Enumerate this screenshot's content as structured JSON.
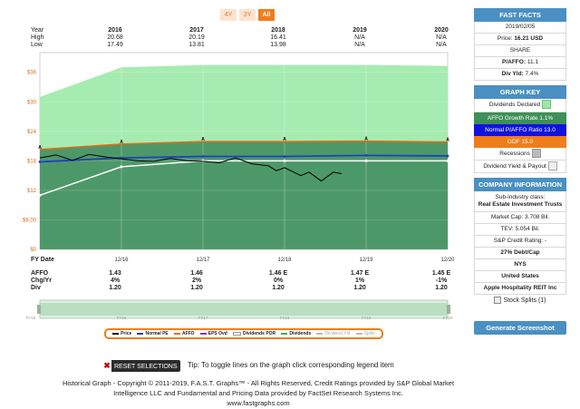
{
  "range_buttons": [
    {
      "label": "4Y",
      "active": false
    },
    {
      "label": "3Y",
      "active": false
    },
    {
      "label": "All",
      "active": true
    }
  ],
  "header_table": {
    "row_labels": [
      "Year",
      "High",
      "Low"
    ],
    "years": [
      "2016",
      "2017",
      "2018",
      "2019",
      "2020"
    ],
    "high": [
      "20.68",
      "20.19",
      "16.41",
      "N/A",
      "N/A"
    ],
    "low": [
      "17.49",
      "13.81",
      "13.98",
      "N/A",
      "N/A"
    ]
  },
  "chart_data": {
    "type": "area",
    "title": "",
    "y_ticks": [
      "$36",
      "$30",
      "$24",
      "$18",
      "$12",
      "$6.00",
      "$0"
    ],
    "ylim": [
      0,
      40
    ],
    "x_labels": [
      "12/16",
      "12/17",
      "12/18",
      "12/19",
      "12/20"
    ],
    "timeline_labels": [
      "FY15",
      "FY16",
      "FY17",
      "FY18",
      "FY19",
      "FY20"
    ],
    "series": [
      {
        "name": "Price",
        "color": "#000000",
        "points": [
          [
            2015.0,
            18.6
          ],
          [
            2015.2,
            19.2
          ],
          [
            2015.4,
            18.1
          ],
          [
            2015.6,
            19.3
          ],
          [
            2015.8,
            18.8
          ],
          [
            2016.0,
            18.4
          ],
          [
            2016.2,
            18.0
          ],
          [
            2016.4,
            17.9
          ],
          [
            2016.6,
            18.5
          ],
          [
            2016.8,
            18.0
          ],
          [
            2017.0,
            17.9
          ],
          [
            2017.2,
            17.6
          ],
          [
            2017.4,
            18.6
          ],
          [
            2017.6,
            17.4
          ],
          [
            2017.8,
            17.0
          ],
          [
            2017.9,
            16.0
          ],
          [
            2018.0,
            16.6
          ],
          [
            2018.2,
            15.0
          ],
          [
            2018.3,
            15.7
          ],
          [
            2018.45,
            13.9
          ],
          [
            2018.6,
            15.7
          ],
          [
            2018.7,
            15.4
          ]
        ]
      },
      {
        "name": "Normal P/AFFO Ratio 13.0",
        "color": "#1f3fbf",
        "points": [
          [
            2015.0,
            17.8
          ],
          [
            2016.0,
            18.6
          ],
          [
            2017.0,
            18.9
          ],
          [
            2018.0,
            18.9
          ],
          [
            2019.0,
            19.1
          ],
          [
            2020.0,
            19.0
          ]
        ]
      },
      {
        "name": "AFFO",
        "color": "#e06a1b",
        "points": [
          [
            2015.0,
            20.3
          ],
          [
            2016.0,
            21.4
          ],
          [
            2017.0,
            21.9
          ],
          [
            2018.0,
            21.9
          ],
          [
            2019.0,
            22.0
          ],
          [
            2020.0,
            21.8
          ]
        ]
      },
      {
        "name": "Dividends POR",
        "color": "#ffffff",
        "points": [
          [
            2015.0,
            11.0
          ],
          [
            2016.0,
            16.8
          ],
          [
            2017.0,
            18.0
          ],
          [
            2018.0,
            18.0
          ],
          [
            2019.0,
            18.0
          ],
          [
            2020.0,
            18.0
          ]
        ]
      },
      {
        "name": "Dividends Declared",
        "color": "#8ee89a",
        "points": [
          [
            2015.0,
            31.0
          ],
          [
            2016.0,
            37.0
          ],
          [
            2017.0,
            37.5
          ],
          [
            2018.0,
            37.5
          ],
          [
            2019.0,
            37.5
          ],
          [
            2020.0,
            37.3
          ]
        ]
      }
    ]
  },
  "bottom_table": {
    "fy_label": "FY Date",
    "rows": [
      {
        "label": "AFFO",
        "values": [
          "1.43",
          "1.46",
          "1.46 E",
          "1.47 E",
          "1.45 E"
        ]
      },
      {
        "label": "Chg/Yr",
        "values": [
          "4%",
          "2%",
          "0%",
          "1%",
          "-1%"
        ]
      },
      {
        "label": "Div",
        "values": [
          "1.20",
          "1.20",
          "1.20",
          "1.20",
          "1.20"
        ]
      }
    ]
  },
  "legend": [
    {
      "label": "Price",
      "color": "#000000",
      "dim": false
    },
    {
      "label": "Normal PE",
      "color": "#1f3fbf",
      "dim": false
    },
    {
      "label": "AFFO",
      "color": "#e06a1b",
      "dim": false
    },
    {
      "label": "EPS Ovd",
      "color": "#8a2be2",
      "dim": false
    },
    {
      "label": "Dividends POR",
      "color": "#ffffff",
      "dim": false
    },
    {
      "label": "Dividends",
      "color": "#3cb14a",
      "dim": false
    },
    {
      "label": "Dividend Yld",
      "color": "#bbbbbb",
      "dim": true
    },
    {
      "label": "Splits",
      "color": "#bbbbbb",
      "dim": true
    }
  ],
  "reset_label": "RESET SELECTIONS",
  "tip_text": "Tip: To toggle lines on the graph click corresponding legend item",
  "footer_lines": [
    "Historical Graph - Copyright © 2011-2019, F.A.S.T. Graphs™ - All Rights Reserved, Credit Ratings provided by S&P Global Market",
    "Intelligence LLC and Fundamental and Pricing Data provided by FactSet Research Systems Inc.",
    "www.fastgraphs.com"
  ],
  "sidebar": {
    "fast_facts_title": "FAST FACTS",
    "date": "2019/02/05",
    "price_label": "Price:",
    "price_value": "16.21 USD",
    "share": "SHARE",
    "pafo_label": "P/AFFO:",
    "pafo_value": "11.1",
    "div_yld_label": "Div Yld:",
    "div_yld_value": "7.4%",
    "graph_key_title": "GRAPH KEY",
    "key_dividends_declared": "Dividends Declared",
    "key_affo_growth": "AFFO Growth Rate 1.1%",
    "key_normal_pafo": "Normal P/AFFO Ratio 13.0",
    "key_gdf": "GDF 15.0",
    "key_recessions": "Recessions",
    "key_div_yield_payout": "Dividend Yield & Payout",
    "company_title": "COMPANY INFORMATION",
    "sub_industry_label": "Sub-industry class:",
    "sub_industry_value": "Real Estate Investment Trusts",
    "market_cap": "Market Cap: 3.708 Bil.",
    "tev": "TEV: 5.054 Bil.",
    "sp_rating": "S&P Credit Rating: -",
    "debt_cap": "27% Debt/Cap",
    "exchange": "NYS",
    "country": "United States",
    "company_name": "Apple Hospitality REIT Inc",
    "stock_splits": "Stock Splits (1)",
    "generate_label": "Generate Screenshot"
  }
}
